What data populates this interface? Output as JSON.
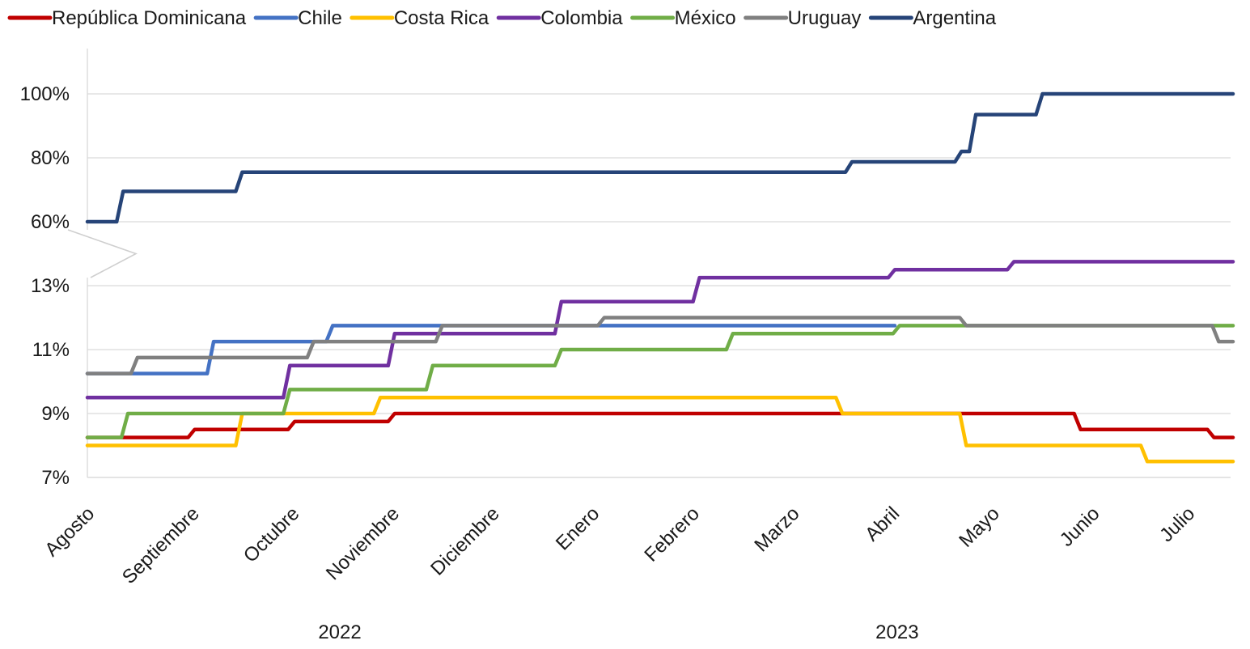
{
  "chart_data": {
    "type": "line",
    "title": "",
    "xlabel": "",
    "ylabel": "",
    "y_axis": {
      "broken": true,
      "lower_range": [
        7,
        13
      ],
      "upper_range": [
        60,
        100
      ],
      "ticks": [
        "7%",
        "9%",
        "11%",
        "13%",
        "60%",
        "80%",
        "100%"
      ]
    },
    "grid": true,
    "legend_position": "top",
    "x_range": [
      0,
      12
    ],
    "categories": [
      "Agosto",
      "Septiembre",
      "Octubre",
      "Noviembre",
      "Diciembre",
      "Enero",
      "Febrero",
      "Marzo",
      "Abril",
      "Mayo",
      "Junio",
      "Julio"
    ],
    "category_positions": [
      0,
      1.1,
      2.15,
      3.2,
      4.25,
      5.3,
      6.35,
      7.4,
      8.45,
      9.5,
      10.55,
      11.55
    ],
    "year_labels": [
      {
        "label": "2022",
        "x": 2.65
      },
      {
        "label": "2023",
        "x": 8.5
      }
    ],
    "series": [
      {
        "name": "República Dominicana",
        "color": "#C00000",
        "points": [
          [
            0,
            8.25
          ],
          [
            1.1,
            8.5
          ],
          [
            2.15,
            8.75
          ],
          [
            3.2,
            9.0
          ],
          [
            8.0,
            9.0
          ],
          [
            10.4,
            8.5
          ],
          [
            11.8,
            8.25
          ],
          [
            12,
            8.25
          ]
        ]
      },
      {
        "name": "Chile",
        "color": "#4472C4",
        "points": [
          [
            0,
            10.25
          ],
          [
            1.3,
            11.25
          ],
          [
            2.55,
            11.75
          ],
          [
            8.45,
            11.75
          ]
        ]
      },
      {
        "name": "Costa Rica",
        "color": "#FFC000",
        "points": [
          [
            0,
            8.0
          ],
          [
            1.6,
            9.0
          ],
          [
            3.05,
            9.5
          ],
          [
            7.9,
            9.0
          ],
          [
            9.2,
            8.0
          ],
          [
            11.1,
            7.5
          ],
          [
            12,
            7.5
          ]
        ]
      },
      {
        "name": "Colombia",
        "color": "#7030A0",
        "points": [
          [
            0,
            9.5
          ],
          [
            2.1,
            10.5
          ],
          [
            3.2,
            11.5
          ],
          [
            4.95,
            12.5
          ],
          [
            6.4,
            13.25
          ],
          [
            8.45,
            13.5
          ],
          [
            9.7,
            13.75
          ],
          [
            12,
            13.75
          ]
        ]
      },
      {
        "name": "México",
        "color": "#70AD47",
        "points": [
          [
            0,
            8.25
          ],
          [
            0.4,
            9.0
          ],
          [
            2.1,
            9.75
          ],
          [
            3.6,
            10.5
          ],
          [
            4.95,
            11.0
          ],
          [
            6.75,
            11.5
          ],
          [
            8.5,
            11.75
          ],
          [
            12,
            11.75
          ]
        ]
      },
      {
        "name": "Uruguay",
        "color": "#808080",
        "points": [
          [
            0,
            10.25
          ],
          [
            0.5,
            10.75
          ],
          [
            2.35,
            11.25
          ],
          [
            3.7,
            11.75
          ],
          [
            5.4,
            12.0
          ],
          [
            9.2,
            11.75
          ],
          [
            11.85,
            11.25
          ],
          [
            12,
            11.25
          ]
        ]
      },
      {
        "name": "Argentina",
        "color": "#264478",
        "points": [
          [
            0,
            60.0
          ],
          [
            0.35,
            69.5
          ],
          [
            1.6,
            75.5
          ],
          [
            8.0,
            78.75
          ],
          [
            9.15,
            82.0
          ],
          [
            9.3,
            93.5
          ],
          [
            10.0,
            100.0
          ],
          [
            12,
            100.0
          ]
        ]
      }
    ]
  }
}
